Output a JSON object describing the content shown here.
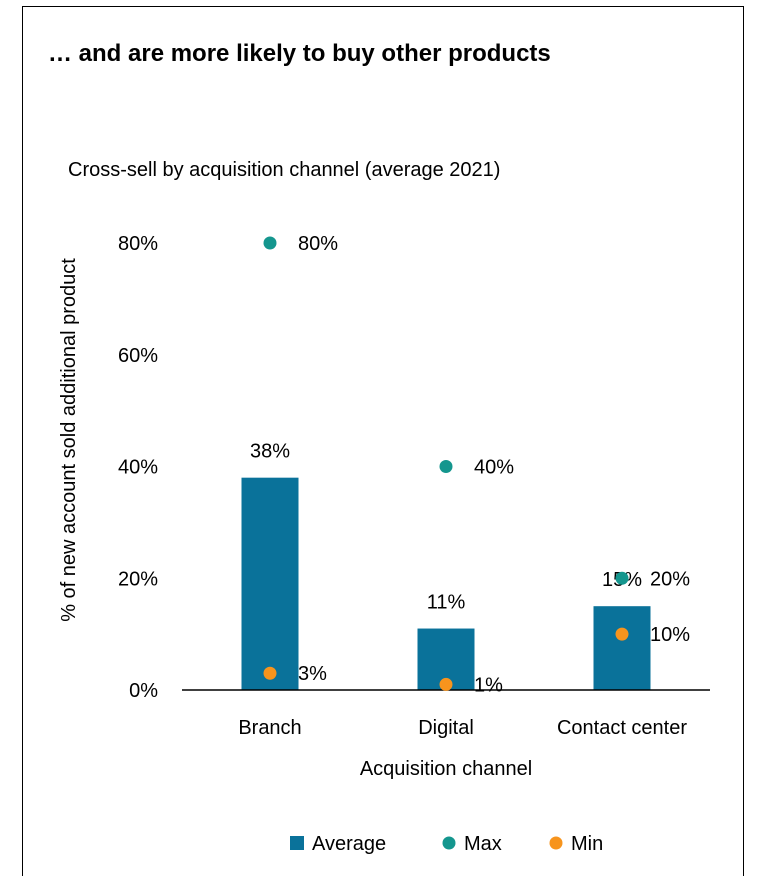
{
  "heading": "… and are more likely to buy other products",
  "chart_data": {
    "type": "bar",
    "title": "Cross-sell by acquisition channel (average 2021)",
    "xlabel": "Acquisition channel",
    "ylabel": "% of new account sold additional product",
    "categories": [
      "Branch",
      "Digital",
      "Contact center"
    ],
    "ylim": [
      0,
      80
    ],
    "yticks": [
      0,
      20,
      40,
      60,
      80
    ],
    "tick_suffix": "%",
    "grid": false,
    "legend_position": "bottom",
    "series": [
      {
        "name": "Average",
        "kind": "bar",
        "color": "#0A729A",
        "values": [
          38,
          11,
          15
        ],
        "labels": [
          "38%",
          "11%",
          "15%"
        ]
      },
      {
        "name": "Max",
        "kind": "point",
        "color": "#14968E",
        "values": [
          80,
          40,
          20
        ],
        "labels": [
          "80%",
          "40%",
          "20%"
        ]
      },
      {
        "name": "Min",
        "kind": "point",
        "color": "#F7941D",
        "values": [
          3,
          1,
          10
        ],
        "labels": [
          "3%",
          "1%",
          "10%"
        ]
      }
    ]
  }
}
